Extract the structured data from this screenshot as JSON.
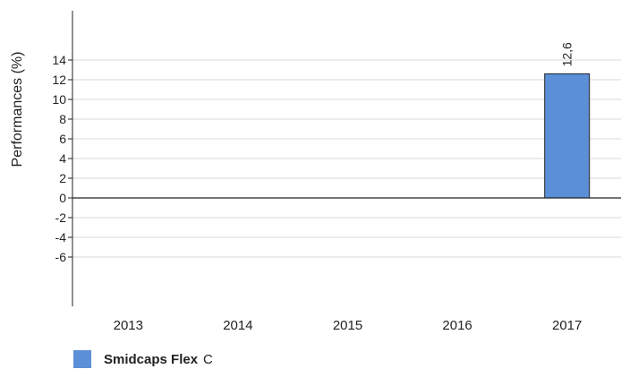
{
  "chart_data": {
    "type": "bar",
    "categories": [
      "2013",
      "2014",
      "2015",
      "2016",
      "2017"
    ],
    "series": [
      {
        "name": "Smidcaps Flex",
        "name_suffix": "C",
        "color": "#5b8fd8",
        "values": [
          null,
          null,
          null,
          null,
          12.6
        ],
        "data_labels": [
          "",
          "",
          "",
          "",
          "12,6"
        ]
      }
    ],
    "ylabel": "Performances (%)",
    "yticks": [
      {
        "value": 14,
        "label": "14"
      },
      {
        "value": 12,
        "label": "12"
      },
      {
        "value": 10,
        "label": "10"
      },
      {
        "value": 8,
        "label": "8"
      },
      {
        "value": 6,
        "label": "6"
      },
      {
        "value": 4,
        "label": "4"
      },
      {
        "value": 2,
        "label": "2"
      },
      {
        "value": 0,
        "label": "0"
      },
      {
        "value": -2,
        "label": "-2"
      },
      {
        "value": -4,
        "label": "-4"
      },
      {
        "value": -6,
        "label": "-6"
      }
    ],
    "ylim": [
      -11,
      19
    ],
    "grid": true,
    "legend": "bottom-left"
  }
}
